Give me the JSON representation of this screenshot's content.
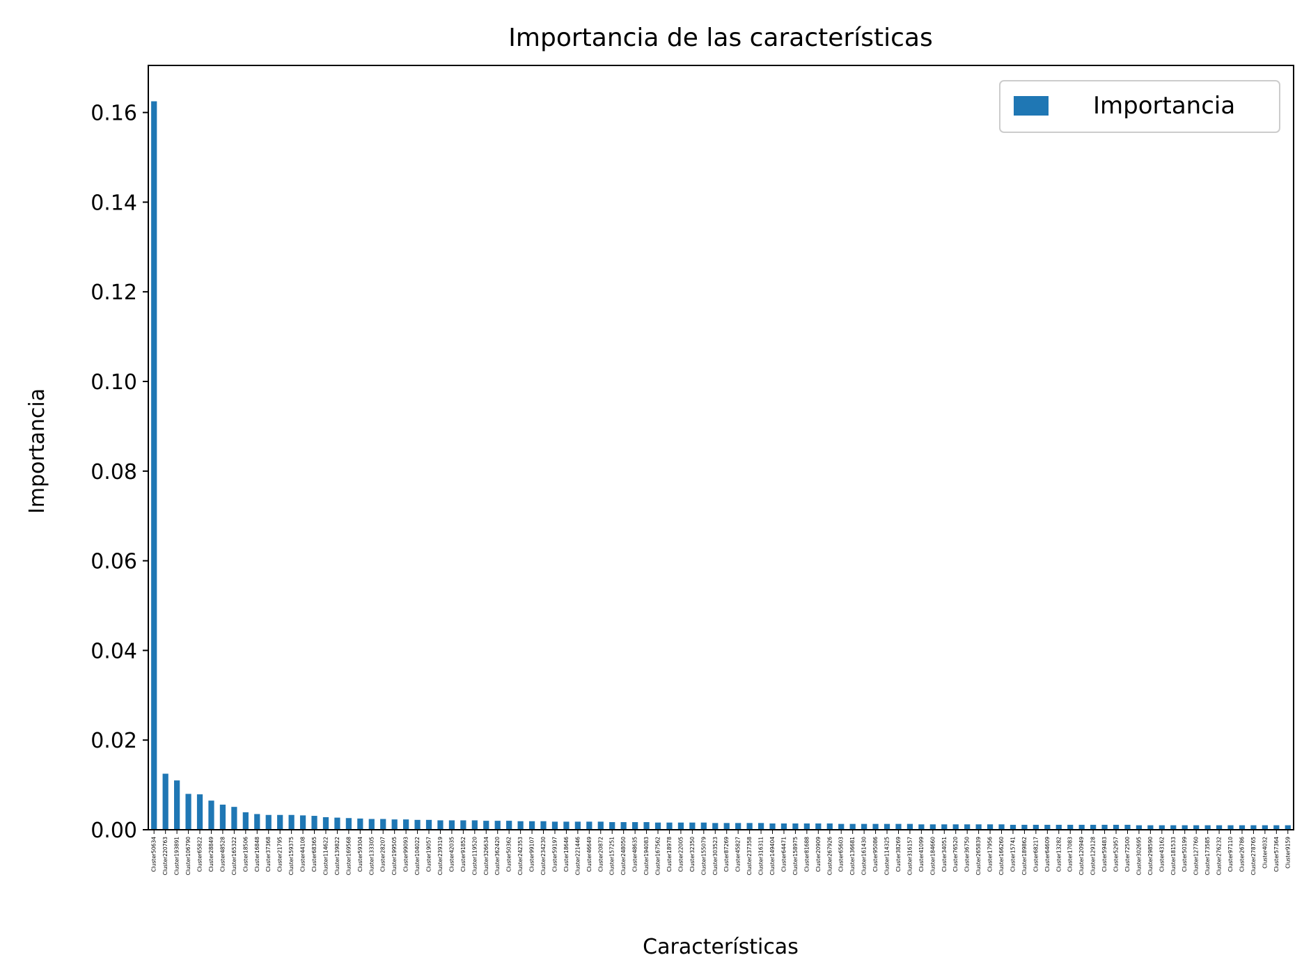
{
  "chart_data": {
    "type": "bar",
    "title": "Importancia de las características",
    "xlabel": "Características",
    "ylabel": "Importancia",
    "ylim": [
      0,
      0.1705
    ],
    "yticks": [
      "0.00",
      "0.02",
      "0.04",
      "0.06",
      "0.08",
      "0.10",
      "0.12",
      "0.14",
      "0.16"
    ],
    "grid": false,
    "legend_position": "top-right",
    "bar_color": "#1f77b4",
    "series": [
      {
        "name": "Importancia",
        "values": [
          0.1625,
          0.0125,
          0.011,
          0.008,
          0.0079,
          0.0065,
          0.0056,
          0.0051,
          0.0039,
          0.0035,
          0.0033,
          0.0033,
          0.0033,
          0.0032,
          0.0031,
          0.0028,
          0.0027,
          0.0026,
          0.0025,
          0.0024,
          0.0024,
          0.0023,
          0.0023,
          0.0022,
          0.0022,
          0.0021,
          0.0021,
          0.0021,
          0.0021,
          0.002,
          0.002,
          0.002,
          0.0019,
          0.0019,
          0.0019,
          0.0018,
          0.0018,
          0.0018,
          0.0018,
          0.0018,
          0.0017,
          0.0017,
          0.0017,
          0.0017,
          0.0016,
          0.0016,
          0.0016,
          0.0016,
          0.0016,
          0.0015,
          0.0015,
          0.0015,
          0.0015,
          0.0015,
          0.0014,
          0.0014,
          0.0014,
          0.0014,
          0.0014,
          0.0014,
          0.0013,
          0.0013,
          0.0013,
          0.0013,
          0.0013,
          0.0013,
          0.0013,
          0.0012,
          0.0012,
          0.0012,
          0.0012,
          0.0012,
          0.0012,
          0.0012,
          0.0012,
          0.0011,
          0.0011,
          0.0011,
          0.0011,
          0.0011,
          0.0011,
          0.0011,
          0.0011,
          0.0011,
          0.0011,
          0.0011,
          0.001,
          0.001,
          0.001,
          0.001,
          0.001,
          0.001,
          0.001,
          0.001,
          0.001,
          0.001,
          0.001,
          0.001,
          0.001,
          0.001
        ]
      }
    ],
    "categories": [
      "Cluster50634",
      "Cluster220763",
      "Cluster193891",
      "Cluster106790",
      "Cluster65822",
      "Cluster28849",
      "Cluster48528",
      "Cluster165322",
      "Cluster18506",
      "Cluster16848",
      "Cluster37368",
      "Cluster21795",
      "Cluster159375",
      "Cluster44108",
      "Cluster68365",
      "Cluster114622",
      "Cluster139822",
      "Cluster169568",
      "Cluster59304",
      "Cluster133305",
      "Cluster28207",
      "Cluster199505",
      "Cluster99093",
      "Cluster104022",
      "Cluster19057",
      "Cluster239319",
      "Cluster42035",
      "Cluster91852",
      "Cluster119520",
      "Cluster326634",
      "Cluster362420",
      "Cluster50362",
      "Cluster242353",
      "Cluster99107",
      "Cluster234230",
      "Cluster59197",
      "Cluster18646",
      "Cluster221446",
      "Cluster46649",
      "Cluster20872",
      "Cluster157251",
      "Cluster248050",
      "Cluster48635",
      "Cluster194083",
      "Cluster167562",
      "Cluster18978",
      "Cluster22005",
      "Cluster32350",
      "Cluster155079",
      "Cluster303523",
      "Cluster87269",
      "Cluster45827",
      "Cluster237358",
      "Cluster316311",
      "Cluster149404",
      "Cluster64471",
      "Cluster158975",
      "Cluster81688",
      "Cluster20909",
      "Cluster267926",
      "Cluster65603",
      "Cluster136681",
      "Cluster161430",
      "Cluster95086",
      "Cluster114325",
      "Cluster38269",
      "Cluster316157",
      "Cluster41099",
      "Cluster184660",
      "Cluster34051",
      "Cluster76520",
      "Cluster36750",
      "Cluster265839",
      "Cluster17956",
      "Cluster166260",
      "Cluster15741",
      "Cluster189862",
      "Cluster68217",
      "Cluster64609",
      "Cluster13282",
      "Cluster17083",
      "Cluster120949",
      "Cluster129128",
      "Cluster59483",
      "Cluster52957",
      "Cluster72500",
      "Cluster302695",
      "Cluster298590",
      "Cluster43162",
      "Cluster181533",
      "Cluster50199",
      "Cluster127760",
      "Cluster173585",
      "Cluster276232",
      "Cluster97110",
      "Cluster26786",
      "Cluster278765",
      "Cluster4032",
      "Cluster57364",
      "Cluster9159"
    ]
  }
}
